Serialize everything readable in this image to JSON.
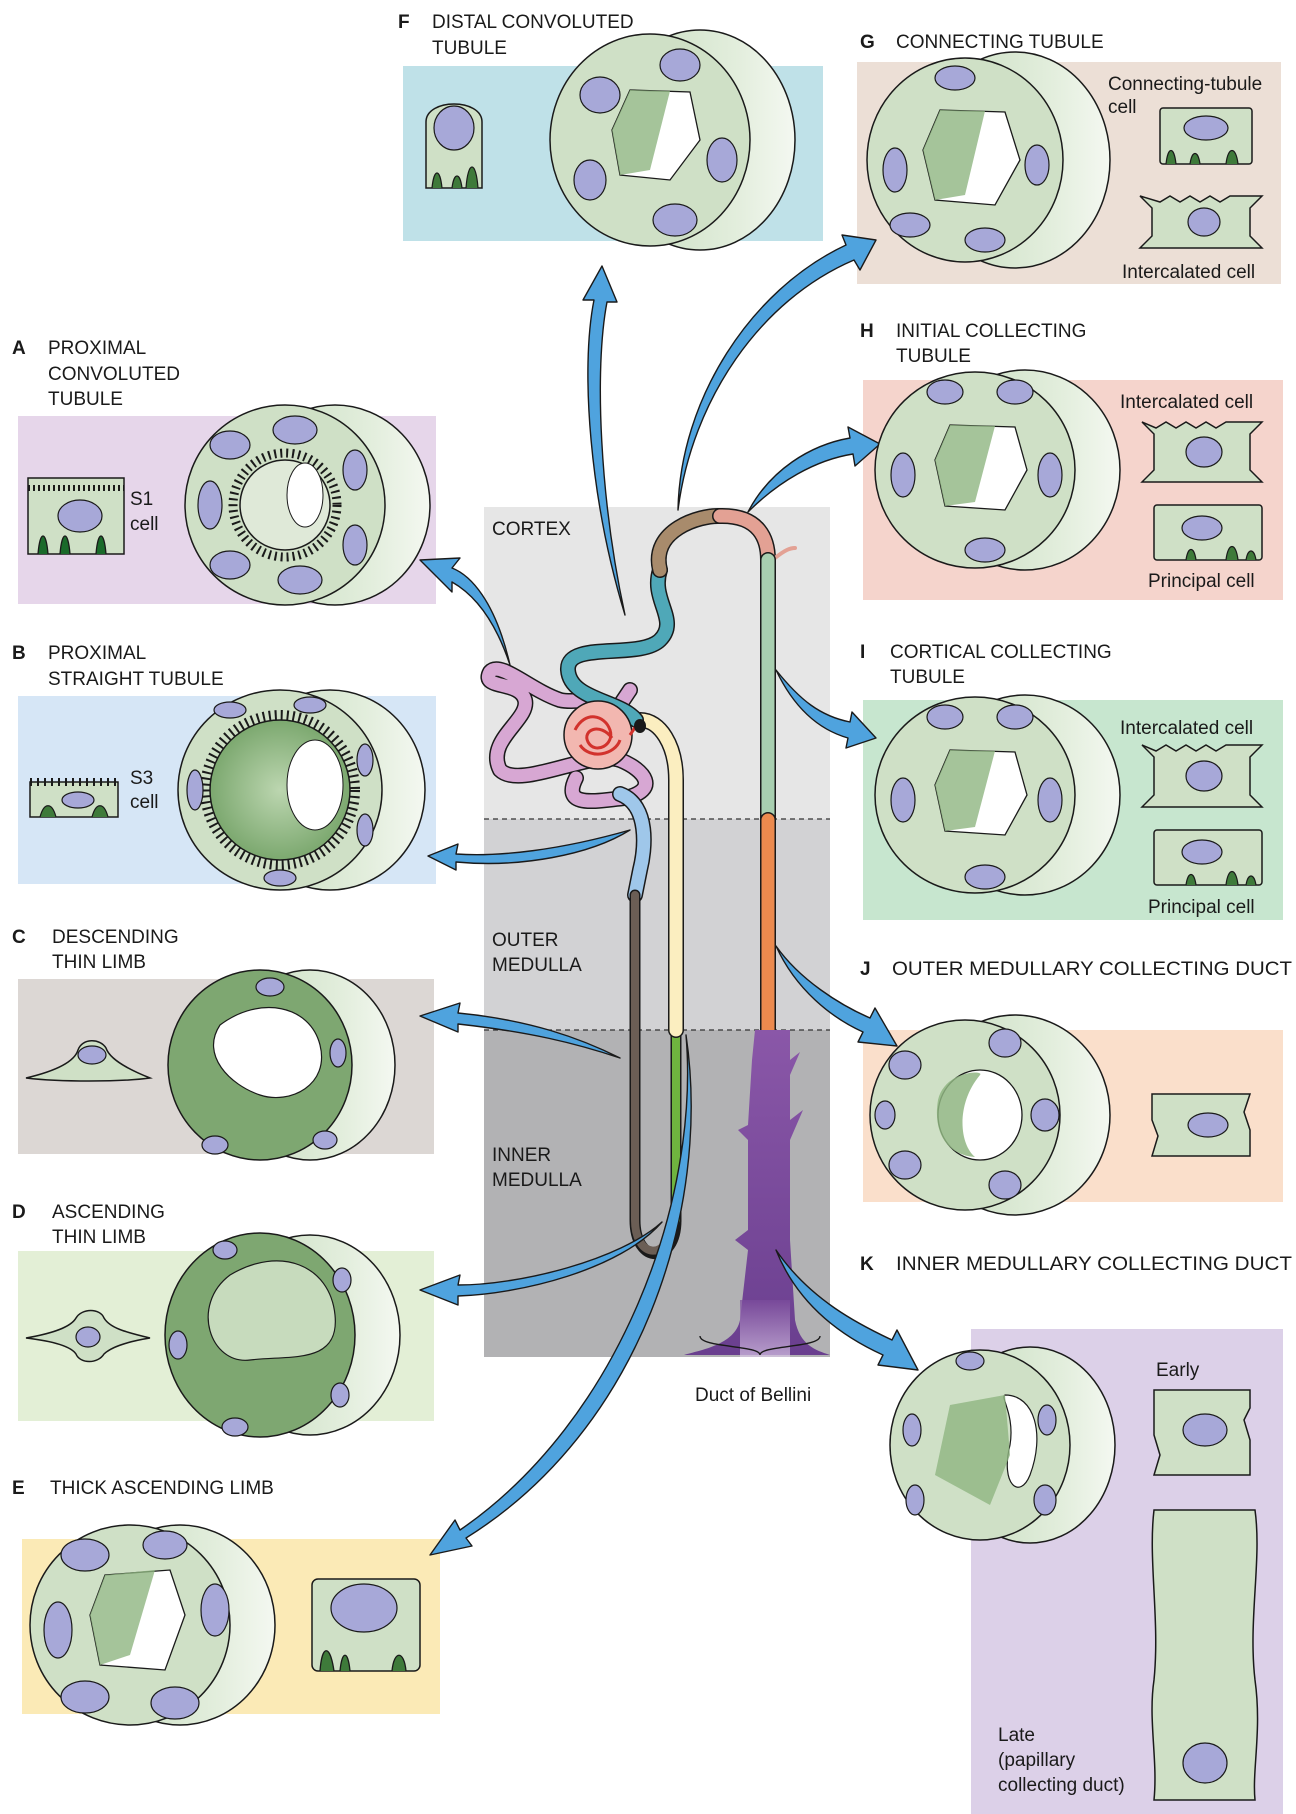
{
  "segments": {
    "A": {
      "letter": "A",
      "lines": [
        "PROXIMAL",
        "CONVOLUTED",
        "TUBULE"
      ],
      "cell_label": [
        "S1",
        "cell"
      ]
    },
    "B": {
      "letter": "B",
      "lines": [
        "PROXIMAL",
        "STRAIGHT TUBULE"
      ],
      "cell_label": [
        "S3",
        "cell"
      ]
    },
    "C": {
      "letter": "C",
      "lines": [
        "DESCENDING",
        "THIN LIMB"
      ]
    },
    "D": {
      "letter": "D",
      "lines": [
        "ASCENDING",
        "THIN LIMB"
      ]
    },
    "E": {
      "letter": "E",
      "lines": [
        "THICK ASCENDING LIMB"
      ]
    },
    "F": {
      "letter": "F",
      "lines": [
        "DISTAL CONVOLUTED",
        "TUBULE"
      ]
    },
    "G": {
      "letter": "G",
      "lines": [
        "CONNECTING TUBULE"
      ],
      "cell_label_1": [
        "Connecting-tubule",
        "cell"
      ],
      "cell_label_2": "Intercalated cell"
    },
    "H": {
      "letter": "H",
      "lines": [
        "INITIAL COLLECTING",
        "TUBULE"
      ],
      "cell_label_1": "Intercalated cell",
      "cell_label_2": "Principal cell"
    },
    "I": {
      "letter": "I",
      "lines": [
        "CORTICAL COLLECTING",
        "TUBULE"
      ],
      "cell_label_1": "Intercalated cell",
      "cell_label_2": "Principal cell"
    },
    "J": {
      "letter": "J",
      "lines": [
        "OUTER MEDULLARY COLLECTING DUCT"
      ]
    },
    "K": {
      "letter": "K",
      "lines": [
        "INNER MEDULLARY COLLECTING DUCT"
      ],
      "early": "Early",
      "late": [
        "Late",
        "(papillary",
        "collecting duct)"
      ]
    }
  },
  "zones": {
    "cortex": "CORTEX",
    "outer_medulla": [
      "OUTER",
      "MEDULLA"
    ],
    "inner_medulla": [
      "INNER",
      "MEDULLA"
    ]
  },
  "duct_label": "Duct of Bellini",
  "colors": {
    "panel_A": "#e6d6ea",
    "panel_B": "#d6e6f6",
    "panel_C": "#dcd7d4",
    "panel_D": "#e3efd6",
    "panel_E": "#fbeab6",
    "panel_F": "#bfe1e8",
    "panel_G": "#ecdfd6",
    "panel_H": "#f5d4cc",
    "panel_I": "#c7e6cf",
    "panel_J": "#fadfcb",
    "panel_K": "#dcd0e8",
    "cortex": "#e6e6e6",
    "outer_medulla": "#d2d2d4",
    "inner_medulla": "#b2b2b4",
    "arrow": "#4fa3de",
    "cell_fill": "#cfe0c6",
    "nucleus": "#a7a8d8"
  }
}
